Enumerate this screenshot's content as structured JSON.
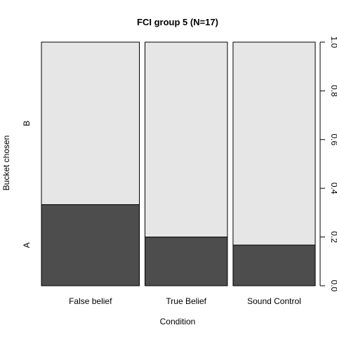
{
  "chart_data": {
    "type": "spineplot",
    "title": "FCI group 5 (N=17)",
    "xlabel": "Condition",
    "ylabel": "Bucket chosen",
    "categories": [
      "False belief",
      "True Belief",
      "Sound Control"
    ],
    "category_widths": [
      0.373,
      0.314,
      0.313
    ],
    "series": [
      {
        "name": "A",
        "values": [
          0.333,
          0.2,
          0.167
        ],
        "color": "#4d4d4d"
      },
      {
        "name": "B",
        "values": [
          0.667,
          0.8,
          0.833
        ],
        "color": "#e6e6e6"
      }
    ],
    "y_levels": [
      "A",
      "B"
    ],
    "ylim": [
      0,
      1
    ],
    "right_axis_ticks": [
      "0.0",
      "0.2",
      "0.4",
      "0.6",
      "0.8",
      "1.0"
    ]
  }
}
